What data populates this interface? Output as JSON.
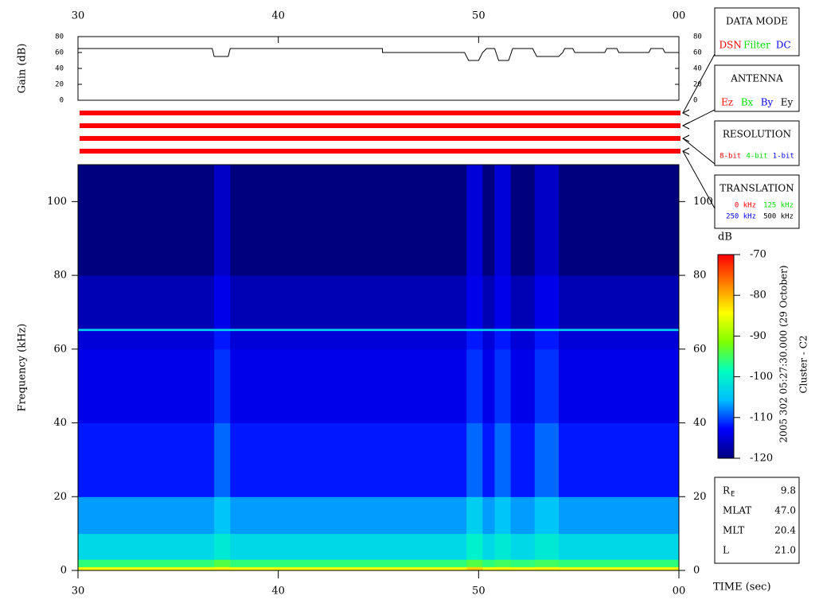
{
  "chart_data": [
    {
      "type": "line",
      "y_label": "Gain (dB)",
      "x": [
        30,
        36.7,
        36.8,
        37.5,
        37.6,
        45.2,
        45.2,
        49.3,
        49.5,
        50.0,
        50.2,
        50.4,
        50.8,
        51.0,
        51.5,
        51.7,
        52.7,
        52.9,
        54.0,
        54.2,
        54.3,
        54.7,
        54.8,
        56.3,
        56.4,
        56.9,
        57.0,
        58.5,
        58.6,
        59.2,
        59.3,
        60
      ],
      "values": [
        65,
        65,
        55,
        55,
        65,
        65,
        60,
        60,
        50,
        50,
        60,
        65,
        65,
        50,
        50,
        65,
        65,
        55,
        55,
        60,
        65,
        65,
        60,
        60,
        65,
        65,
        60,
        60,
        65,
        65,
        60,
        60
      ],
      "color": "#000000",
      "xlim": [
        30,
        60
      ],
      "xticks": [
        30,
        40,
        50,
        {
          "value": 60,
          "label": "00"
        }
      ],
      "ylim": [
        0,
        80
      ],
      "yticks": [
        0,
        20,
        40,
        60,
        80
      ]
    },
    {
      "type": "heatmap",
      "x_label": "TIME (sec)",
      "y_label": "Frequency (kHz)",
      "x_bins": [
        30,
        36.8,
        37.6,
        49.4,
        50.2,
        50.8,
        51.6,
        52.8,
        54.0,
        60
      ],
      "y_bins": [
        0,
        1,
        3,
        10,
        20,
        40,
        60,
        65,
        65.6,
        80,
        110
      ],
      "values": [
        [
          -85,
          -84,
          -85,
          -82,
          -85,
          -84,
          -85,
          -84,
          -85
        ],
        [
          -96,
          -94,
          -96,
          -94,
          -96,
          -95,
          -96,
          -95,
          -96
        ],
        [
          -103,
          -101,
          -103,
          -100,
          -103,
          -101,
          -103,
          -101,
          -103
        ],
        [
          -107,
          -105,
          -107,
          -104,
          -107,
          -105,
          -107,
          -105,
          -107
        ],
        [
          -112,
          -109,
          -112,
          -109,
          -112,
          -109,
          -112,
          -109,
          -112
        ],
        [
          -114,
          -111,
          -114,
          -111,
          -114,
          -111,
          -114,
          -111,
          -114
        ],
        [
          -115,
          -112,
          -115,
          -112,
          -115,
          -112,
          -115,
          -112,
          -115
        ],
        [
          -104,
          -104,
          -104,
          -104,
          -104,
          -104,
          -104,
          -104,
          -104
        ],
        [
          -117,
          -114,
          -117,
          -114,
          -117,
          -114,
          -117,
          -114,
          -117
        ],
        [
          -120,
          -116,
          -120,
          -115,
          -120,
          -115,
          -120,
          -116,
          -120
        ]
      ],
      "xlim": [
        30,
        60
      ],
      "xticks": [
        30,
        40,
        50,
        {
          "value": 60,
          "label": "00"
        }
      ],
      "ylim": [
        0,
        110
      ],
      "yticks": [
        0,
        20,
        40,
        60,
        80,
        100
      ],
      "colorbar": {
        "label": "dB",
        "zlim": [
          -120,
          -70
        ],
        "ticks": [
          -70,
          -80,
          -90,
          -100,
          -110,
          -120
        ],
        "colormap": [
          "#00007f",
          "#0000ff",
          "#00bfff",
          "#00ffbf",
          "#7fff00",
          "#ffff00",
          "#ff7f00",
          "#ff0000"
        ]
      }
    }
  ],
  "legend_boxes": [
    {
      "title": "DATA MODE",
      "rows": [
        [
          {
            "text": "DSN",
            "color": "#ff0000"
          },
          {
            "text": "Filter",
            "color": "#00dd00"
          },
          {
            "text": "DC",
            "color": "#0000ff"
          }
        ]
      ]
    },
    {
      "title": "ANTENNA",
      "rows": [
        [
          {
            "text": "Ez",
            "color": "#ff0000"
          },
          {
            "text": "Bx",
            "color": "#00dd00"
          },
          {
            "text": "By",
            "color": "#0000ff"
          },
          {
            "text": "Ey",
            "color": "#000000"
          }
        ]
      ]
    },
    {
      "title": "RESOLUTION",
      "rows": [
        [
          {
            "text": "8-bit",
            "color": "#ff0000"
          },
          {
            "text": "4-bit",
            "color": "#00dd00"
          },
          {
            "text": "1-bit",
            "color": "#0000ff"
          }
        ]
      ]
    },
    {
      "title": "TRANSLATION",
      "rows": [
        [
          {
            "text": "0 kHz",
            "color": "#ff0000"
          },
          {
            "text": "125 kHz",
            "color": "#00dd00"
          }
        ],
        [
          {
            "text": "250 kHz",
            "color": "#0000ff"
          },
          {
            "text": "500 kHz",
            "color": "#000000"
          }
        ]
      ]
    }
  ],
  "timestamp": "2005 302 05:27:30.000 (29 October)",
  "spacecraft": "Cluster - C2",
  "ephemeris": [
    {
      "label": "R",
      "subscript": "E",
      "value": "9.8"
    },
    {
      "label": "MLAT",
      "value": "47.0"
    },
    {
      "label": "MLT",
      "value": "20.4"
    },
    {
      "label": "L",
      "value": "21.0"
    }
  ]
}
